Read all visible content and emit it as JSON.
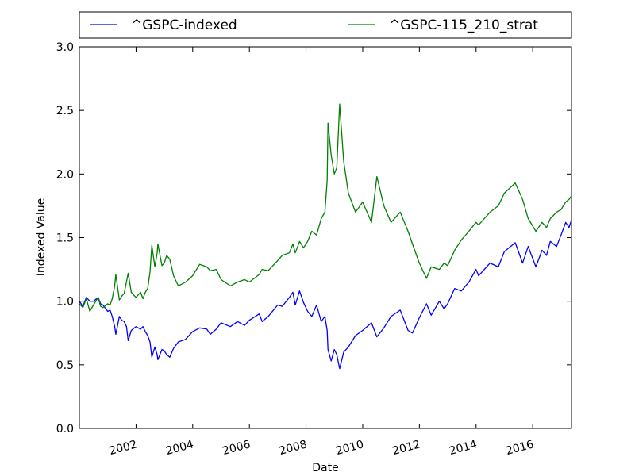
{
  "chart_data": {
    "type": "line",
    "title": "",
    "xlabel": "Date",
    "ylabel": "Indexed Value",
    "xlim": [
      "2000-01-01",
      "2017-05-15"
    ],
    "ylim": [
      0,
      3
    ],
    "x_ticks": [
      "2002",
      "2004",
      "2006",
      "2008",
      "2010",
      "2012",
      "2014",
      "2016"
    ],
    "y_ticks": [
      "0.0",
      "0.5",
      "1.0",
      "1.5",
      "2.0",
      "2.5",
      "3.0"
    ],
    "grid": false,
    "legend_position": "top",
    "series": [
      {
        "name": "^GSPC-indexed",
        "color": "#0000ff",
        "points": [
          [
            "2000-01-01",
            1.0
          ],
          [
            "2000-02-15",
            0.96
          ],
          [
            "2000-03-31",
            1.03
          ],
          [
            "2000-05-15",
            1.0
          ],
          [
            "2000-06-30",
            1.0
          ],
          [
            "2000-08-31",
            1.03
          ],
          [
            "2000-09-30",
            0.98
          ],
          [
            "2000-10-31",
            0.97
          ],
          [
            "2000-12-31",
            0.92
          ],
          [
            "2001-01-31",
            0.93
          ],
          [
            "2001-02-28",
            0.88
          ],
          [
            "2001-03-31",
            0.8
          ],
          [
            "2001-04-15",
            0.74
          ],
          [
            "2001-05-31",
            0.88
          ],
          [
            "2001-06-30",
            0.85
          ],
          [
            "2001-07-31",
            0.84
          ],
          [
            "2001-08-31",
            0.8
          ],
          [
            "2001-09-21",
            0.69
          ],
          [
            "2001-10-31",
            0.77
          ],
          [
            "2001-12-31",
            0.8
          ],
          [
            "2002-02-28",
            0.78
          ],
          [
            "2002-03-31",
            0.8
          ],
          [
            "2002-04-30",
            0.76
          ],
          [
            "2002-05-31",
            0.73
          ],
          [
            "2002-06-30",
            0.68
          ],
          [
            "2002-07-23",
            0.56
          ],
          [
            "2002-08-31",
            0.64
          ],
          [
            "2002-09-30",
            0.58
          ],
          [
            "2002-10-09",
            0.54
          ],
          [
            "2002-11-30",
            0.62
          ],
          [
            "2002-12-31",
            0.61
          ],
          [
            "2003-01-31",
            0.58
          ],
          [
            "2003-03-11",
            0.56
          ],
          [
            "2003-04-30",
            0.63
          ],
          [
            "2003-06-30",
            0.68
          ],
          [
            "2003-09-30",
            0.7
          ],
          [
            "2003-12-31",
            0.76
          ],
          [
            "2004-03-31",
            0.79
          ],
          [
            "2004-06-30",
            0.78
          ],
          [
            "2004-08-15",
            0.74
          ],
          [
            "2004-10-31",
            0.78
          ],
          [
            "2004-12-31",
            0.83
          ],
          [
            "2005-04-30",
            0.8
          ],
          [
            "2005-07-31",
            0.84
          ],
          [
            "2005-10-31",
            0.81
          ],
          [
            "2005-12-31",
            0.85
          ],
          [
            "2006-05-08",
            0.9
          ],
          [
            "2006-06-15",
            0.84
          ],
          [
            "2006-08-31",
            0.88
          ],
          [
            "2006-12-31",
            0.97
          ],
          [
            "2007-02-28",
            0.96
          ],
          [
            "2007-05-31",
            1.03
          ],
          [
            "2007-07-15",
            1.07
          ],
          [
            "2007-08-15",
            0.97
          ],
          [
            "2007-10-09",
            1.08
          ],
          [
            "2007-11-30",
            0.99
          ],
          [
            "2008-01-22",
            0.92
          ],
          [
            "2008-03-15",
            0.88
          ],
          [
            "2008-05-15",
            0.97
          ],
          [
            "2008-07-15",
            0.84
          ],
          [
            "2008-08-31",
            0.88
          ],
          [
            "2008-09-30",
            0.77
          ],
          [
            "2008-10-10",
            0.62
          ],
          [
            "2008-11-20",
            0.53
          ],
          [
            "2008-12-31",
            0.62
          ],
          [
            "2009-01-31",
            0.58
          ],
          [
            "2009-03-09",
            0.47
          ],
          [
            "2009-04-30",
            0.6
          ],
          [
            "2009-06-30",
            0.64
          ],
          [
            "2009-09-30",
            0.73
          ],
          [
            "2009-12-31",
            0.77
          ],
          [
            "2010-04-23",
            0.83
          ],
          [
            "2010-07-02",
            0.72
          ],
          [
            "2010-09-30",
            0.79
          ],
          [
            "2010-12-31",
            0.88
          ],
          [
            "2011-04-29",
            0.93
          ],
          [
            "2011-08-08",
            0.77
          ],
          [
            "2011-10-03",
            0.75
          ],
          [
            "2011-12-31",
            0.87
          ],
          [
            "2012-04-02",
            0.98
          ],
          [
            "2012-06-01",
            0.89
          ],
          [
            "2012-09-14",
            1.0
          ],
          [
            "2012-11-15",
            0.94
          ],
          [
            "2012-12-31",
            0.98
          ],
          [
            "2013-03-31",
            1.1
          ],
          [
            "2013-06-24",
            1.08
          ],
          [
            "2013-09-30",
            1.15
          ],
          [
            "2013-12-31",
            1.25
          ],
          [
            "2014-02-03",
            1.2
          ],
          [
            "2014-06-30",
            1.3
          ],
          [
            "2014-10-15",
            1.27
          ],
          [
            "2014-12-31",
            1.39
          ],
          [
            "2015-05-21",
            1.46
          ],
          [
            "2015-08-24",
            1.3
          ],
          [
            "2015-11-03",
            1.43
          ],
          [
            "2016-02-11",
            1.27
          ],
          [
            "2016-04-30",
            1.4
          ],
          [
            "2016-06-27",
            1.36
          ],
          [
            "2016-08-15",
            1.47
          ],
          [
            "2016-11-04",
            1.43
          ],
          [
            "2016-12-31",
            1.52
          ],
          [
            "2017-03-01",
            1.62
          ],
          [
            "2017-04-13",
            1.58
          ],
          [
            "2017-05-15",
            1.64
          ]
        ]
      },
      {
        "name": "^GSPC-115_210_strat",
        "color": "#008000",
        "points": [
          [
            "2000-01-01",
            0.98
          ],
          [
            "2000-02-15",
            0.95
          ],
          [
            "2000-03-31",
            1.02
          ],
          [
            "2000-05-15",
            0.92
          ],
          [
            "2000-06-30",
            0.97
          ],
          [
            "2000-08-31",
            1.03
          ],
          [
            "2000-09-30",
            0.96
          ],
          [
            "2000-10-31",
            0.95
          ],
          [
            "2000-12-31",
            0.98
          ],
          [
            "2001-01-31",
            0.97
          ],
          [
            "2001-02-28",
            1.02
          ],
          [
            "2001-03-31",
            1.12
          ],
          [
            "2001-04-15",
            1.21
          ],
          [
            "2001-05-31",
            1.01
          ],
          [
            "2001-06-30",
            1.04
          ],
          [
            "2001-07-31",
            1.06
          ],
          [
            "2001-09-21",
            1.22
          ],
          [
            "2001-10-31",
            1.07
          ],
          [
            "2001-12-31",
            1.03
          ],
          [
            "2002-02-28",
            1.07
          ],
          [
            "2002-03-31",
            1.02
          ],
          [
            "2002-04-30",
            1.07
          ],
          [
            "2002-05-31",
            1.1
          ],
          [
            "2002-06-30",
            1.23
          ],
          [
            "2002-07-23",
            1.44
          ],
          [
            "2002-08-31",
            1.27
          ],
          [
            "2002-09-30",
            1.38
          ],
          [
            "2002-10-09",
            1.45
          ],
          [
            "2002-11-30",
            1.28
          ],
          [
            "2002-12-31",
            1.3
          ],
          [
            "2003-01-31",
            1.36
          ],
          [
            "2003-03-11",
            1.33
          ],
          [
            "2003-04-30",
            1.2
          ],
          [
            "2003-06-30",
            1.12
          ],
          [
            "2003-09-30",
            1.15
          ],
          [
            "2003-12-31",
            1.2
          ],
          [
            "2004-03-31",
            1.29
          ],
          [
            "2004-06-30",
            1.27
          ],
          [
            "2004-08-15",
            1.24
          ],
          [
            "2004-10-31",
            1.25
          ],
          [
            "2004-12-31",
            1.17
          ],
          [
            "2005-04-30",
            1.12
          ],
          [
            "2005-07-31",
            1.15
          ],
          [
            "2005-10-31",
            1.17
          ],
          [
            "2005-12-31",
            1.15
          ],
          [
            "2006-05-08",
            1.21
          ],
          [
            "2006-06-15",
            1.25
          ],
          [
            "2006-08-31",
            1.24
          ],
          [
            "2006-12-31",
            1.32
          ],
          [
            "2007-02-28",
            1.36
          ],
          [
            "2007-05-31",
            1.38
          ],
          [
            "2007-07-15",
            1.45
          ],
          [
            "2007-08-15",
            1.38
          ],
          [
            "2007-10-09",
            1.47
          ],
          [
            "2007-11-30",
            1.42
          ],
          [
            "2008-01-22",
            1.47
          ],
          [
            "2008-03-15",
            1.55
          ],
          [
            "2008-05-15",
            1.52
          ],
          [
            "2008-07-15",
            1.65
          ],
          [
            "2008-08-31",
            1.7
          ],
          [
            "2008-09-30",
            1.95
          ],
          [
            "2008-10-10",
            2.4
          ],
          [
            "2008-11-20",
            2.15
          ],
          [
            "2008-12-31",
            2.0
          ],
          [
            "2009-01-31",
            2.05
          ],
          [
            "2009-03-09",
            2.55
          ],
          [
            "2009-04-30",
            2.1
          ],
          [
            "2009-06-30",
            1.85
          ],
          [
            "2009-09-30",
            1.7
          ],
          [
            "2009-12-31",
            1.78
          ],
          [
            "2010-04-23",
            1.62
          ],
          [
            "2010-07-02",
            1.98
          ],
          [
            "2010-09-30",
            1.75
          ],
          [
            "2010-12-31",
            1.62
          ],
          [
            "2011-04-29",
            1.7
          ],
          [
            "2011-08-08",
            1.55
          ],
          [
            "2011-10-03",
            1.45
          ],
          [
            "2011-12-31",
            1.3
          ],
          [
            "2012-04-02",
            1.18
          ],
          [
            "2012-06-01",
            1.27
          ],
          [
            "2012-09-14",
            1.25
          ],
          [
            "2012-11-15",
            1.3
          ],
          [
            "2012-12-31",
            1.28
          ],
          [
            "2013-03-31",
            1.4
          ],
          [
            "2013-06-24",
            1.48
          ],
          [
            "2013-09-30",
            1.55
          ],
          [
            "2013-12-31",
            1.62
          ],
          [
            "2014-02-03",
            1.6
          ],
          [
            "2014-06-30",
            1.7
          ],
          [
            "2014-10-15",
            1.75
          ],
          [
            "2014-12-31",
            1.85
          ],
          [
            "2015-05-21",
            1.93
          ],
          [
            "2015-08-24",
            1.8
          ],
          [
            "2015-11-03",
            1.65
          ],
          [
            "2016-02-11",
            1.55
          ],
          [
            "2016-04-30",
            1.62
          ],
          [
            "2016-06-27",
            1.58
          ],
          [
            "2016-08-15",
            1.65
          ],
          [
            "2016-11-04",
            1.7
          ],
          [
            "2016-12-31",
            1.72
          ],
          [
            "2017-03-01",
            1.78
          ],
          [
            "2017-04-13",
            1.8
          ],
          [
            "2017-05-15",
            1.83
          ]
        ]
      }
    ]
  }
}
